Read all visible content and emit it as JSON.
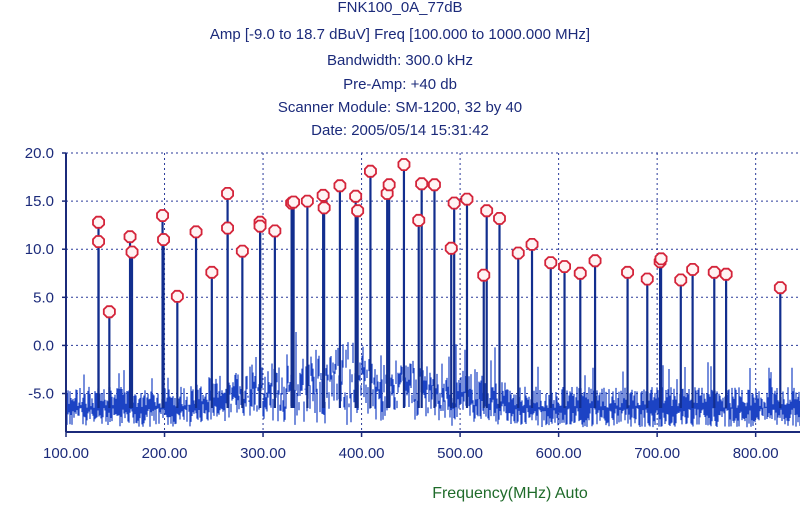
{
  "header": {
    "title": "FNK100_0A_77dB",
    "amp_freq": "Amp [-9.0 to  18.7 dBuV]   Freq [100.000 to  1000.000 MHz]",
    "bandwidth": "Bandwidth: 300.0 kHz",
    "preamp": "Pre-Amp: +40 db",
    "scanner": "Scanner Module: SM-1200, 32 by 40",
    "date": "Date: 2005/05/14  15:31:42"
  },
  "colors": {
    "trace": "#1c43c4",
    "trace_dark": "#122e8e",
    "marker": "#d4243a",
    "axis": "#1b2a7a",
    "grid": "#2a3a9a",
    "xlabel": "#1f6b2a"
  },
  "chart_data": {
    "type": "line",
    "title": "FNK100_0A_77dB",
    "xlabel": "Frequency(MHz) Auto",
    "ylabel": "",
    "xlim": [
      100,
      845
    ],
    "ylim": [
      -9,
      20
    ],
    "grid": true,
    "y_ticks": [
      "20.0",
      "15.0",
      "10.0",
      "5.0",
      "0.0",
      "-5.0"
    ],
    "y_tick_values": [
      20,
      15,
      10,
      5,
      0,
      -5
    ],
    "x_ticks": [
      "100.00",
      "200.00",
      "300.00",
      "400.00",
      "500.00",
      "600.00",
      "700.00",
      "800.00"
    ],
    "x_tick_values": [
      100,
      200,
      300,
      400,
      500,
      600,
      700,
      800
    ],
    "noise_floor": -6.5,
    "peaks": [
      {
        "x": 133,
        "y": 12.8
      },
      {
        "x": 133,
        "y": 10.8
      },
      {
        "x": 144,
        "y": 3.5
      },
      {
        "x": 165,
        "y": 11.3
      },
      {
        "x": 167,
        "y": 9.7
      },
      {
        "x": 198,
        "y": 13.5
      },
      {
        "x": 199,
        "y": 11.0
      },
      {
        "x": 213,
        "y": 5.1
      },
      {
        "x": 232,
        "y": 11.8
      },
      {
        "x": 248,
        "y": 7.6
      },
      {
        "x": 264,
        "y": 15.8
      },
      {
        "x": 264,
        "y": 12.2
      },
      {
        "x": 279,
        "y": 9.8
      },
      {
        "x": 297,
        "y": 12.8
      },
      {
        "x": 297,
        "y": 12.4
      },
      {
        "x": 312,
        "y": 11.9
      },
      {
        "x": 329,
        "y": 14.8
      },
      {
        "x": 331,
        "y": 14.9
      },
      {
        "x": 345,
        "y": 15.0
      },
      {
        "x": 361,
        "y": 15.6
      },
      {
        "x": 362,
        "y": 14.3
      },
      {
        "x": 378,
        "y": 16.6
      },
      {
        "x": 394,
        "y": 15.5
      },
      {
        "x": 396,
        "y": 14.0
      },
      {
        "x": 409,
        "y": 18.1
      },
      {
        "x": 426,
        "y": 15.8
      },
      {
        "x": 428,
        "y": 16.7
      },
      {
        "x": 443,
        "y": 18.8
      },
      {
        "x": 458,
        "y": 13.0
      },
      {
        "x": 461,
        "y": 16.8
      },
      {
        "x": 474,
        "y": 16.7
      },
      {
        "x": 491,
        "y": 10.1
      },
      {
        "x": 494,
        "y": 14.8
      },
      {
        "x": 507,
        "y": 15.2
      },
      {
        "x": 524,
        "y": 7.3
      },
      {
        "x": 527,
        "y": 14.0
      },
      {
        "x": 540,
        "y": 13.2
      },
      {
        "x": 559,
        "y": 9.6
      },
      {
        "x": 573,
        "y": 10.5
      },
      {
        "x": 592,
        "y": 8.6
      },
      {
        "x": 606,
        "y": 8.2
      },
      {
        "x": 622,
        "y": 7.5
      },
      {
        "x": 637,
        "y": 8.8
      },
      {
        "x": 670,
        "y": 7.6
      },
      {
        "x": 690,
        "y": 6.9
      },
      {
        "x": 703,
        "y": 8.7
      },
      {
        "x": 704,
        "y": 9.0
      },
      {
        "x": 724,
        "y": 6.8
      },
      {
        "x": 736,
        "y": 7.9
      },
      {
        "x": 758,
        "y": 7.6
      },
      {
        "x": 770,
        "y": 7.4
      },
      {
        "x": 825,
        "y": 6.0
      }
    ]
  }
}
